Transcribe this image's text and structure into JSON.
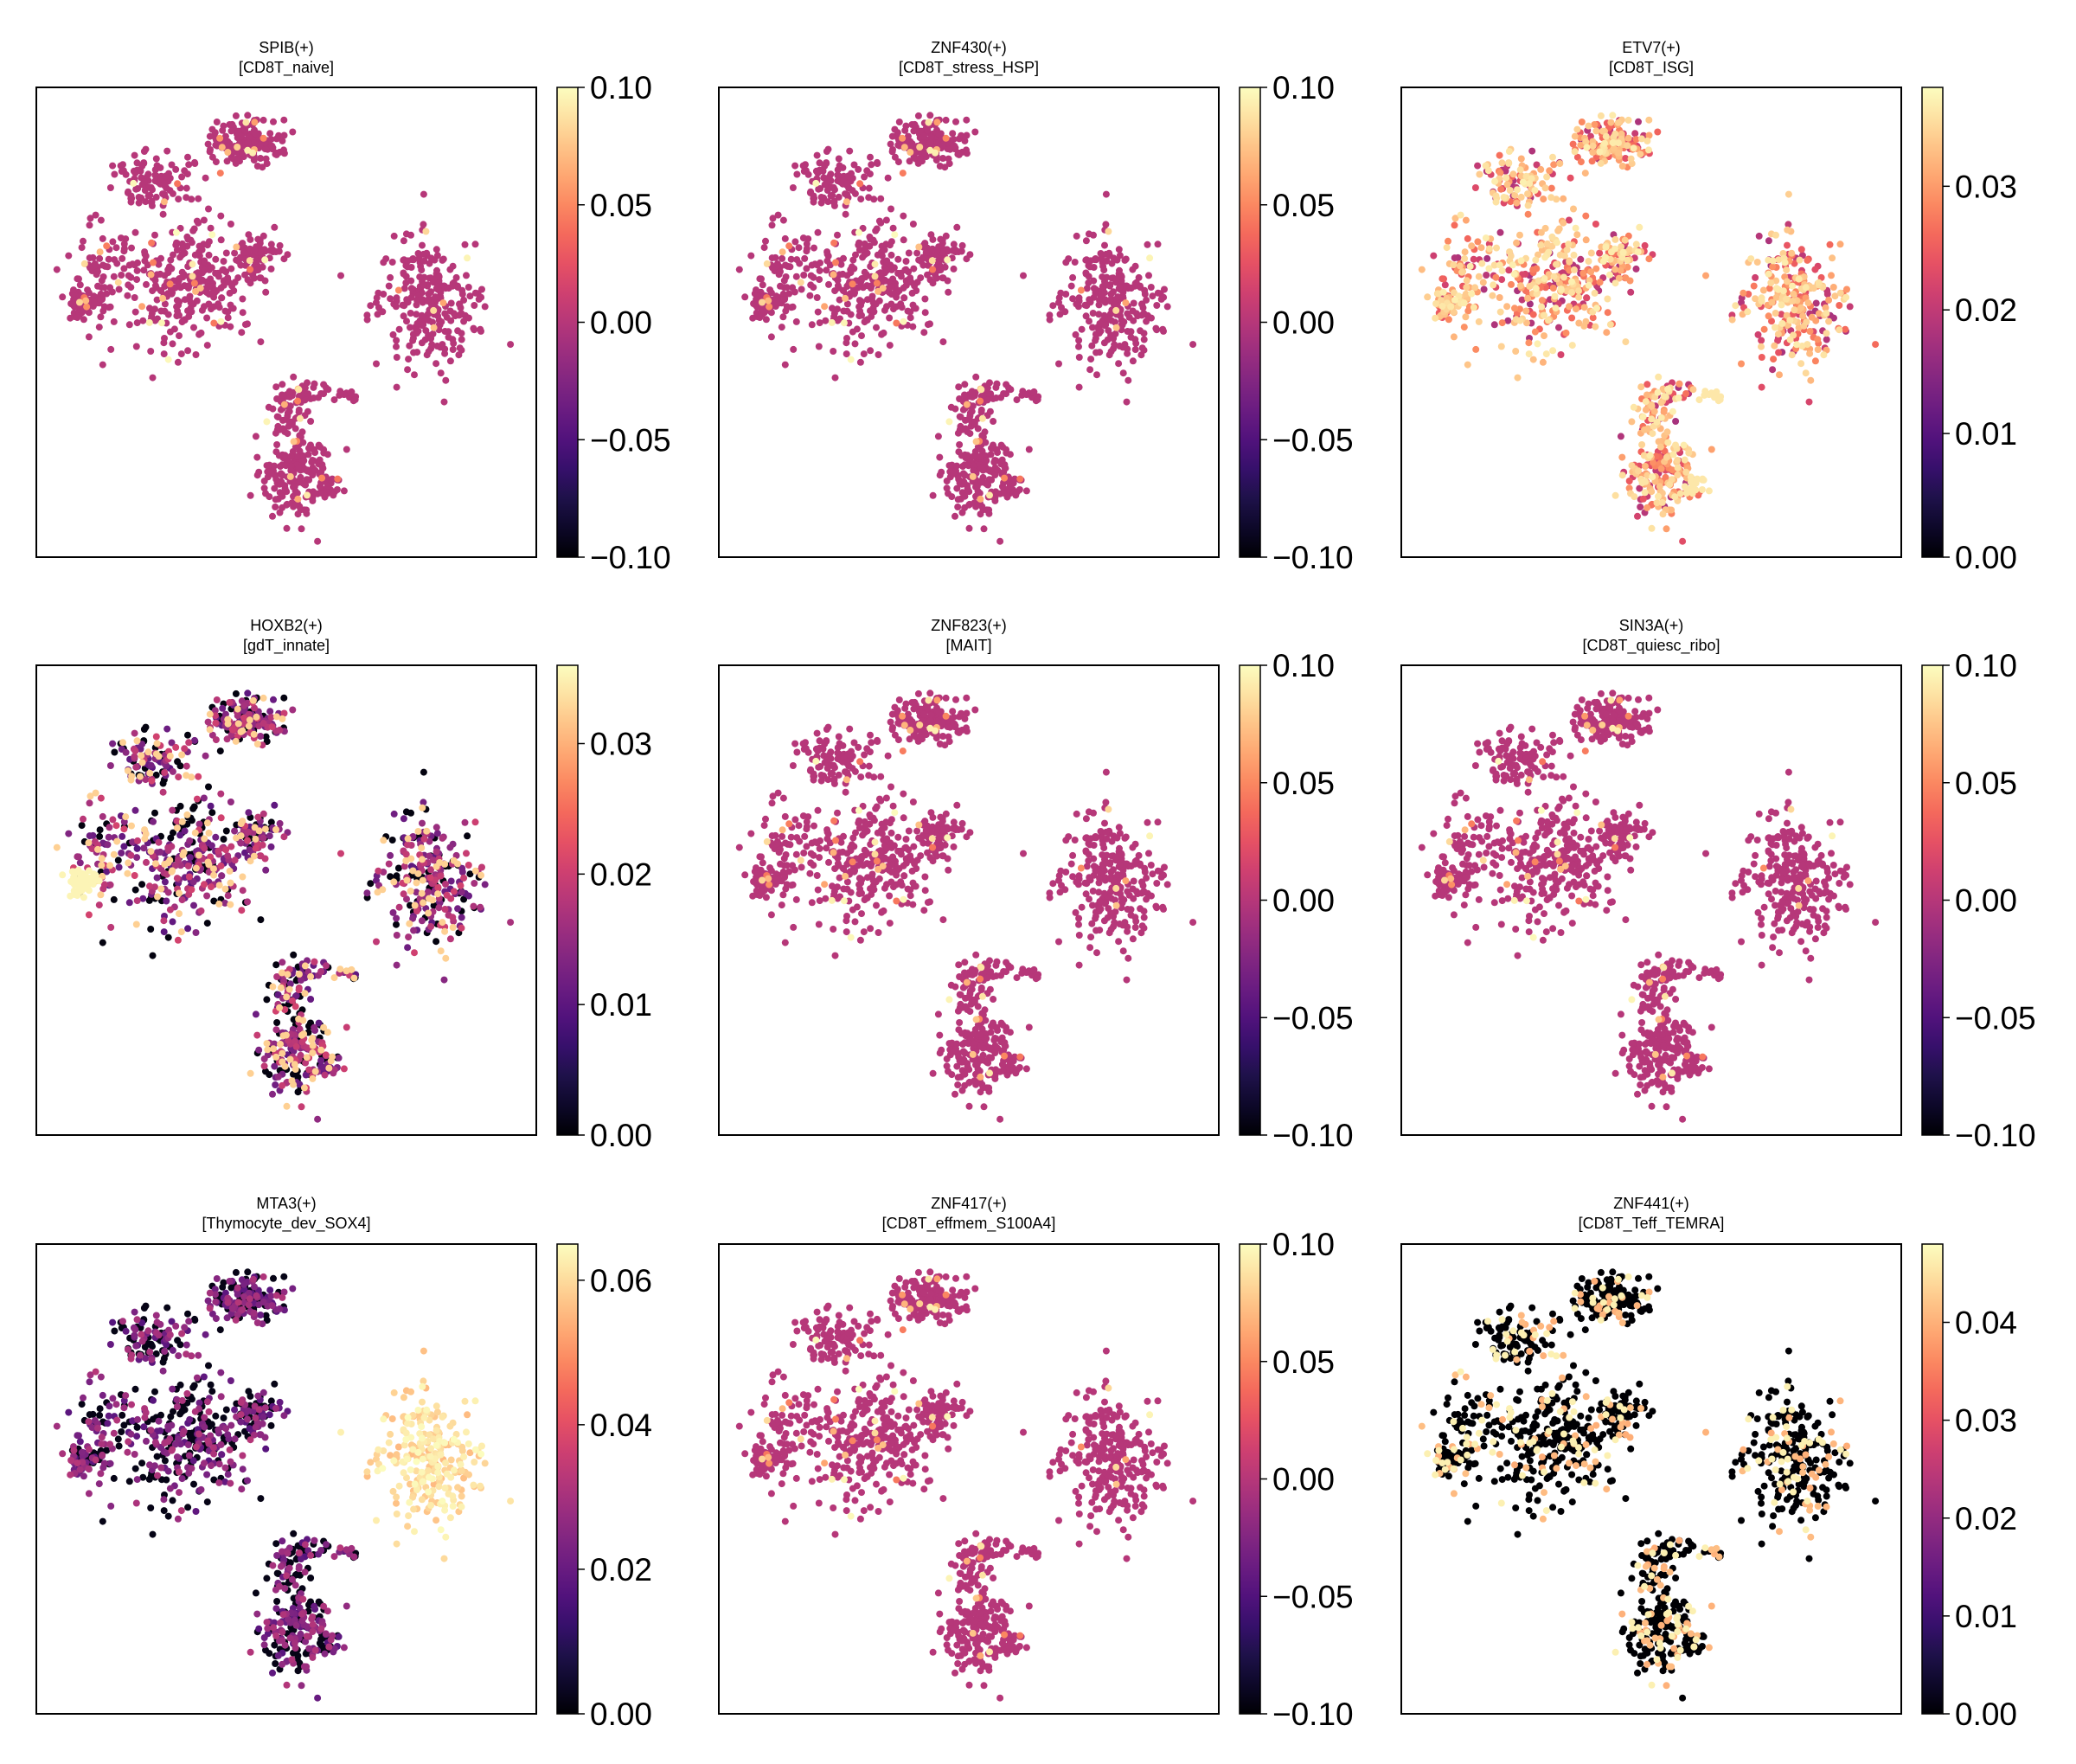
{
  "colors": {
    "magma": [
      "#000004",
      "#0d0829",
      "#1e1149",
      "#36106b",
      "#51127c",
      "#6a1c81",
      "#822681",
      "#9c2e7f",
      "#b63779",
      "#cf4070",
      "#e65164",
      "#f4695c",
      "#fb8861",
      "#fea772",
      "#fec488",
      "#fde2a3",
      "#fcfdbf"
    ],
    "axis": "#000000",
    "background": "#ffffff"
  },
  "chart_data": [
    {
      "type": "scatter",
      "title": "SPIB(+)",
      "subtitle": "[CD8T_naive]",
      "colorbar": {
        "ticks": [
          "0.10",
          "0.05",
          "0.00",
          "−0.05",
          "−0.10"
        ],
        "min": -0.1,
        "max": 0.1
      },
      "value_pattern": "uniform-mid",
      "xticks": [],
      "yticks": [],
      "grid": false
    },
    {
      "type": "scatter",
      "title": "ZNF430(+)",
      "subtitle": "[CD8T_stress_HSP]",
      "colorbar": {
        "ticks": [
          "0.10",
          "0.05",
          "0.00",
          "−0.05",
          "−0.10"
        ],
        "min": -0.1,
        "max": 0.1
      },
      "value_pattern": "uniform-mid",
      "xticks": [],
      "yticks": [],
      "grid": false
    },
    {
      "type": "scatter",
      "title": "ETV7(+)",
      "subtitle": "[CD8T_ISG]",
      "colorbar": {
        "ticks": [
          "0.03",
          "0.02",
          "0.01",
          "0.00"
        ],
        "min": 0.0,
        "max": 0.038
      },
      "value_pattern": "mixed-high",
      "xticks": [],
      "yticks": [],
      "grid": false
    },
    {
      "type": "scatter",
      "title": "HOXB2(+)",
      "subtitle": "[gdT_innate]",
      "colorbar": {
        "ticks": [
          "0.03",
          "0.02",
          "0.01",
          "0.00"
        ],
        "min": 0.0,
        "max": 0.036
      },
      "value_pattern": "mixed-low",
      "xticks": [],
      "yticks": [],
      "grid": false
    },
    {
      "type": "scatter",
      "title": "ZNF823(+)",
      "subtitle": "[MAIT]",
      "colorbar": {
        "ticks": [
          "0.10",
          "0.05",
          "0.00",
          "−0.05",
          "−0.10"
        ],
        "min": -0.1,
        "max": 0.1
      },
      "value_pattern": "uniform-mid",
      "xticks": [],
      "yticks": [],
      "grid": false
    },
    {
      "type": "scatter",
      "title": "SIN3A(+)",
      "subtitle": "[CD8T_quiesc_ribo]",
      "colorbar": {
        "ticks": [
          "0.10",
          "0.05",
          "0.00",
          "−0.05",
          "−0.10"
        ],
        "min": -0.1,
        "max": 0.1
      },
      "value_pattern": "uniform-mid",
      "xticks": [],
      "yticks": [],
      "grid": false
    },
    {
      "type": "scatter",
      "title": "MTA3(+)",
      "subtitle": "[Thymocyte_dev_SOX4]",
      "colorbar": {
        "ticks": [
          "0.06",
          "0.04",
          "0.02",
          "0.00"
        ],
        "min": 0.0,
        "max": 0.065
      },
      "value_pattern": "low-right-high",
      "xticks": [],
      "yticks": [],
      "grid": false
    },
    {
      "type": "scatter",
      "title": "ZNF417(+)",
      "subtitle": "[CD8T_effmem_S100A4]",
      "colorbar": {
        "ticks": [
          "0.10",
          "0.05",
          "0.00",
          "−0.05",
          "−0.10"
        ],
        "min": -0.1,
        "max": 0.1
      },
      "value_pattern": "uniform-mid",
      "xticks": [],
      "yticks": [],
      "grid": false
    },
    {
      "type": "scatter",
      "title": "ZNF441(+)",
      "subtitle": "[CD8T_Teff_TEMRA]",
      "colorbar": {
        "ticks": [
          "0.04",
          "0.03",
          "0.02",
          "0.01",
          "0.00"
        ],
        "min": 0.0,
        "max": 0.048
      },
      "value_pattern": "sparse-black",
      "xticks": [],
      "yticks": [],
      "grid": false
    }
  ]
}
